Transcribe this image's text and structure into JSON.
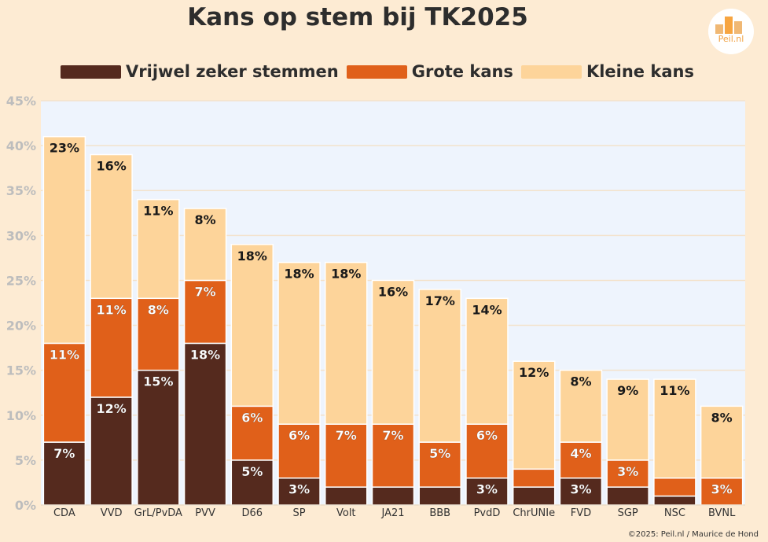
{
  "chart_data": {
    "type": "bar",
    "stacked": true,
    "title": "Kans op stem bij TK2025",
    "categories": [
      "CDA",
      "VVD",
      "GrL/PvDA",
      "PVV",
      "D66",
      "SP",
      "Volt",
      "JA21",
      "BBB",
      "PvdD",
      "ChrUNIe",
      "FVD",
      "SGP",
      "NSC",
      "BVNL"
    ],
    "series": [
      {
        "name": "Vrijwel zeker stemmen",
        "color": "#552a1e",
        "values": [
          7,
          12,
          15,
          18,
          5,
          3,
          2,
          2,
          2,
          3,
          2,
          3,
          2,
          1,
          0
        ]
      },
      {
        "name": "Grote kans",
        "color": "#e0601a",
        "values": [
          11,
          11,
          8,
          7,
          6,
          6,
          7,
          7,
          5,
          6,
          2,
          4,
          3,
          2,
          3
        ]
      },
      {
        "name": "Kleine kans",
        "color": "#fdd49a",
        "values": [
          23,
          16,
          11,
          8,
          18,
          18,
          18,
          16,
          17,
          14,
          12,
          8,
          9,
          11,
          8
        ]
      }
    ],
    "data_labels": [
      [
        "7%",
        "12%",
        "15%",
        "18%",
        "5%",
        "3%",
        "",
        "",
        "",
        "3%",
        "",
        "3%",
        "",
        "",
        ""
      ],
      [
        "11%",
        "11%",
        "8%",
        "7%",
        "6%",
        "6%",
        "7%",
        "7%",
        "5%",
        "6%",
        "",
        "4%",
        "3%",
        "",
        "3%"
      ],
      [
        "23%",
        "16%",
        "11%",
        "8%",
        "18%",
        "18%",
        "18%",
        "16%",
        "17%",
        "14%",
        "12%",
        "8%",
        "9%",
        "11%",
        "8%"
      ]
    ],
    "ylim": [
      0,
      45
    ],
    "yticks": [
      "0%",
      "5%",
      "10%",
      "15%",
      "20%",
      "25%",
      "30%",
      "35%",
      "40%",
      "45%"
    ],
    "grid": true,
    "legend_position": "top",
    "plot_background": "#eef4fd"
  },
  "logo": {
    "text": "Peil.nl"
  },
  "credit": "©2025: Peil.nl / Maurice de Hond"
}
